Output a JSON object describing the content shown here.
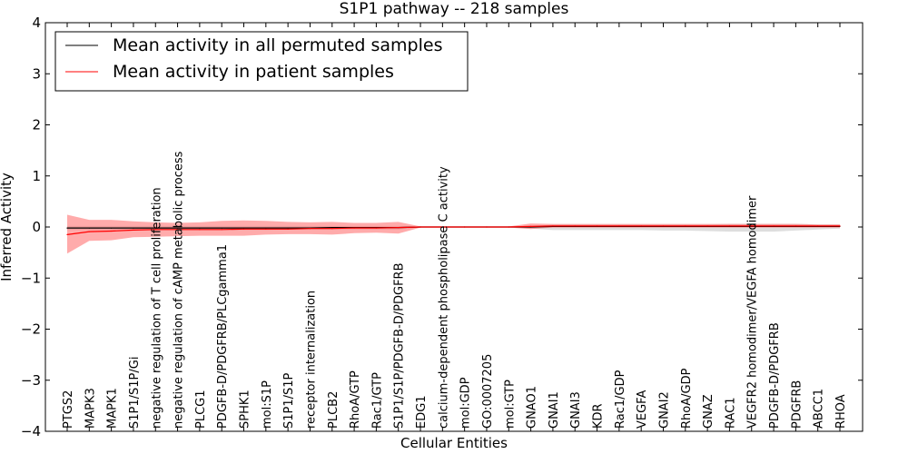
{
  "chart_data": {
    "type": "line",
    "title": "S1P1 pathway -- 218 samples",
    "xlabel": "Cellular Entities",
    "ylabel": "Inferred Activity",
    "ylim": [
      -4,
      4
    ],
    "yticks": [
      4,
      3,
      2,
      1,
      0,
      -1,
      -2,
      -3,
      -4
    ],
    "ytick_labels": [
      "4",
      "3",
      "2",
      "1",
      "0",
      "−1",
      "−2",
      "−3",
      "−4"
    ],
    "grid": false,
    "legend_location": "upper-left",
    "categories": [
      "PTGS2",
      "MAPK3",
      "MAPK1",
      "S1P1/S1P/Gi",
      "negative regulation of T cell proliferation",
      "negative regulation of cAMP metabolic process",
      "PLCG1",
      "PDGFB-D/PDGFRB/PLCgamma1",
      "SPHK1",
      "mol:S1P",
      "S1P1/S1P",
      "receptor internalization",
      "PLCB2",
      "RhoA/GTP",
      "Rac1/GTP",
      "S1P1/S1P/PDGFB-D/PDGFRB",
      "EDG1",
      "calcium-dependent phospholipase C activity",
      "mol:GDP",
      "GO:0007205",
      "mol:GTP",
      "GNAO1",
      "GNAI1",
      "GNAI3",
      "KDR",
      "Rac1/GDP",
      "VEGFA",
      "GNAI2",
      "RhoA/GDP",
      "GNAZ",
      "RAC1",
      "VEGFR2 homodimer/VEGFA homodimer",
      "PDGFB-D/PDGFRB",
      "PDGFRB",
      "ABCC1",
      "RHOA"
    ],
    "series": [
      {
        "name": "Mean activity in all permuted samples",
        "color": "#000000",
        "values": [
          -0.02,
          -0.02,
          -0.02,
          -0.02,
          -0.02,
          -0.02,
          -0.02,
          -0.02,
          -0.02,
          -0.02,
          -0.02,
          -0.02,
          -0.01,
          -0.01,
          -0.01,
          -0.01,
          0,
          0,
          0,
          0,
          0,
          0,
          0.01,
          0.01,
          0.01,
          0.01,
          0.01,
          0.01,
          0.01,
          0.01,
          0.01,
          0.01,
          0.01,
          0.01,
          0.01,
          0.01
        ],
        "band_upper": [
          0.02,
          0.02,
          0.02,
          0.02,
          0.02,
          0.02,
          0.02,
          0.02,
          0.02,
          0.02,
          0.02,
          0.02,
          0.02,
          0.02,
          0.02,
          0.02,
          0.01,
          0.01,
          0.01,
          0.01,
          0.01,
          0.01,
          0.05,
          0.05,
          0.05,
          0.05,
          0.05,
          0.05,
          0.05,
          0.05,
          0.06,
          0.06,
          0.06,
          0.06,
          0.05,
          0.05
        ],
        "band_lower": [
          -0.06,
          -0.06,
          -0.06,
          -0.06,
          -0.06,
          -0.06,
          -0.06,
          -0.06,
          -0.06,
          -0.06,
          -0.05,
          -0.05,
          -0.05,
          -0.05,
          -0.05,
          -0.05,
          -0.01,
          -0.01,
          -0.01,
          -0.01,
          -0.01,
          -0.03,
          -0.06,
          -0.06,
          -0.06,
          -0.06,
          -0.06,
          -0.07,
          -0.07,
          -0.08,
          -0.09,
          -0.09,
          -0.09,
          -0.07,
          -0.05,
          -0.03
        ],
        "band_color": "#d0d0d0"
      },
      {
        "name": "Mean activity in patient samples",
        "color": "#ff0000",
        "values": [
          -0.15,
          -0.09,
          -0.08,
          -0.06,
          -0.05,
          -0.05,
          -0.05,
          -0.05,
          -0.04,
          -0.04,
          -0.04,
          -0.03,
          -0.03,
          -0.02,
          -0.02,
          -0.01,
          0,
          0,
          0,
          0,
          0,
          0.01,
          0.02,
          0.02,
          0.02,
          0.02,
          0.02,
          0.02,
          0.02,
          0.02,
          0.02,
          0.02,
          0.02,
          0.02,
          0.02,
          0.02
        ],
        "band_upper": [
          0.24,
          0.14,
          0.14,
          0.11,
          0.09,
          0.08,
          0.09,
          0.12,
          0.13,
          0.12,
          0.1,
          0.09,
          0.1,
          0.08,
          0.08,
          0.1,
          0.01,
          0.01,
          0.01,
          0.01,
          0.01,
          0.07,
          0.06,
          0.06,
          0.06,
          0.06,
          0.06,
          0.06,
          0.06,
          0.06,
          0.06,
          0.06,
          0.06,
          0.06,
          0.05,
          0.05
        ],
        "band_lower": [
          -0.52,
          -0.27,
          -0.26,
          -0.2,
          -0.19,
          -0.18,
          -0.17,
          -0.17,
          -0.17,
          -0.15,
          -0.14,
          -0.14,
          -0.15,
          -0.12,
          -0.11,
          -0.13,
          -0.01,
          -0.01,
          -0.01,
          -0.01,
          -0.01,
          -0.04,
          -0.01,
          -0.01,
          -0.01,
          -0.01,
          -0.01,
          -0.01,
          -0.01,
          -0.01,
          -0.01,
          -0.01,
          -0.01,
          -0.01,
          -0.01,
          -0.01
        ],
        "band_color": "#ff6666"
      }
    ]
  }
}
